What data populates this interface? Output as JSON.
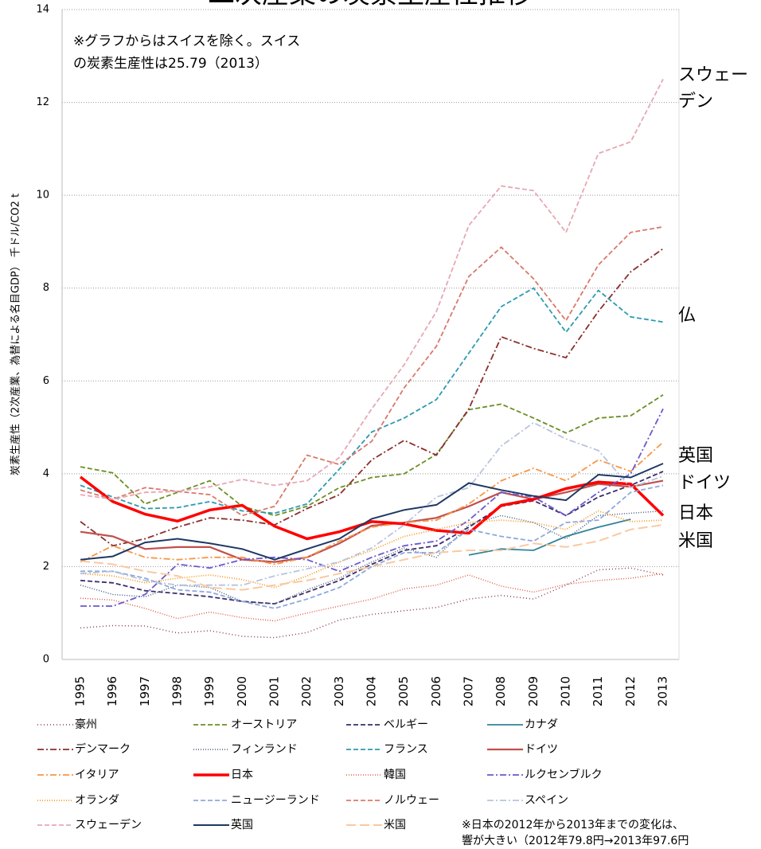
{
  "chart_data": {
    "type": "line",
    "title": "二次産業の炭素生産性推移",
    "y_label": "炭素生産性（2次産業、為替による名目GDP） 千ドル/CO2 t",
    "annotation": [
      "※グラフからはスイスを除く。スイス",
      "の炭素生産性は25.79（2013）"
    ],
    "footnote": [
      "※日本の2012年から2013年までの変化は、",
      "響が大きい（2012年79.8円→2013年97.6円"
    ],
    "series_labels": [
      "スウェー",
      "デン",
      "仏",
      "英国",
      "ドイツ",
      "日本",
      "米国"
    ],
    "categories": [
      "1995",
      "1996",
      "1997",
      "1998",
      "1999",
      "2000",
      "2001",
      "2002",
      "2003",
      "2004",
      "2005",
      "2006",
      "2007",
      "2008",
      "2009",
      "2010",
      "2011",
      "2012",
      "2013"
    ],
    "ylim": [
      0,
      14
    ],
    "yticks": [
      0,
      2,
      4,
      6,
      8,
      10,
      12,
      14
    ],
    "grid": true,
    "series": [
      {
        "name": "豪州",
        "color": "#8b3a62",
        "dash": "1,3",
        "width": 1.5,
        "values": [
          0.68,
          0.73,
          0.72,
          0.57,
          0.62,
          0.5,
          0.47,
          0.58,
          0.85,
          0.97,
          1.05,
          1.12,
          1.3,
          1.38,
          1.3,
          1.6,
          1.93,
          1.97,
          1.82
        ]
      },
      {
        "name": "オーストリア",
        "color": "#6b8e23",
        "dash": "6,3",
        "width": 1.8,
        "values": [
          4.15,
          4.02,
          3.35,
          3.6,
          3.85,
          3.3,
          3.1,
          3.3,
          3.7,
          3.92,
          4.0,
          4.42,
          5.38,
          5.5,
          5.2,
          4.88,
          5.2,
          5.25,
          5.7
        ]
      },
      {
        "name": "ベルギー",
        "color": "#3b2d6b",
        "dash": "6,3",
        "width": 1.8,
        "values": [
          1.7,
          1.65,
          1.48,
          1.42,
          1.35,
          1.25,
          1.2,
          1.45,
          1.7,
          2.05,
          2.35,
          2.45,
          2.85,
          3.3,
          3.42,
          3.1,
          3.5,
          3.75,
          4.05
        ]
      },
      {
        "name": "カナダ",
        "color": "#31849b",
        "dash": "",
        "width": 1.8,
        "values": [
          null,
          null,
          null,
          null,
          null,
          null,
          null,
          null,
          null,
          null,
          null,
          null,
          2.25,
          2.38,
          2.35,
          2.65,
          2.85,
          3.02,
          null
        ]
      },
      {
        "name": "デンマーク",
        "color": "#8b2e2e",
        "dash": "8,3,2,3",
        "width": 1.8,
        "values": [
          2.97,
          2.45,
          2.6,
          2.85,
          3.05,
          3.0,
          2.9,
          3.25,
          3.55,
          4.3,
          4.72,
          4.4,
          5.4,
          6.95,
          6.7,
          6.5,
          7.5,
          8.35,
          8.85
        ]
      },
      {
        "name": "フィンランド",
        "color": "#4a5a7a",
        "dash": "1,2",
        "width": 1.5,
        "values": [
          1.6,
          1.4,
          1.35,
          1.6,
          1.55,
          1.25,
          1.2,
          1.5,
          1.75,
          2.1,
          2.4,
          2.2,
          2.9,
          3.1,
          2.95,
          2.6,
          3.1,
          3.15,
          3.2
        ]
      },
      {
        "name": "フランス",
        "color": "#2e9ab0",
        "dash": "6,3",
        "width": 1.8,
        "values": [
          3.75,
          3.5,
          3.25,
          3.27,
          3.4,
          3.2,
          3.15,
          3.35,
          4.1,
          4.9,
          5.2,
          5.6,
          6.6,
          7.6,
          8.0,
          7.05,
          7.95,
          7.38,
          7.27
        ]
      },
      {
        "name": "ドイツ",
        "color": "#c0504d",
        "dash": "",
        "width": 2.2,
        "values": [
          2.75,
          2.65,
          2.38,
          2.42,
          2.42,
          2.15,
          2.1,
          2.2,
          2.5,
          2.88,
          2.95,
          3.05,
          3.3,
          3.6,
          3.45,
          3.6,
          3.78,
          3.72,
          3.85
        ]
      },
      {
        "name": "イタリア",
        "color": "#f79646",
        "dash": "8,3,2,3",
        "width": 1.8,
        "values": [
          2.1,
          2.45,
          2.2,
          2.15,
          2.2,
          2.2,
          2.05,
          2.2,
          2.55,
          2.85,
          2.95,
          3.0,
          3.35,
          3.85,
          4.12,
          3.85,
          4.3,
          4.05,
          4.68
        ]
      },
      {
        "name": "日本",
        "color": "#ff0000",
        "dash": "",
        "width": 3.5,
        "values": [
          3.93,
          3.4,
          3.13,
          2.98,
          3.22,
          3.32,
          2.87,
          2.6,
          2.75,
          2.97,
          2.92,
          2.78,
          2.72,
          3.32,
          3.45,
          3.68,
          3.82,
          3.78,
          3.1
        ]
      },
      {
        "name": "韓国",
        "color": "#e0604a",
        "dash": "1,2",
        "width": 1.5,
        "values": [
          1.32,
          1.28,
          1.1,
          0.88,
          1.02,
          0.9,
          0.83,
          1.0,
          1.15,
          1.3,
          1.52,
          1.6,
          1.82,
          1.58,
          1.45,
          1.62,
          1.7,
          1.75,
          1.85
        ]
      },
      {
        "name": "ルクセンブルク",
        "color": "#6a5acd",
        "dash": "8,3,2,3",
        "width": 1.8,
        "values": [
          1.15,
          1.15,
          1.4,
          2.05,
          1.97,
          2.15,
          2.2,
          2.15,
          1.9,
          2.2,
          2.45,
          2.55,
          3.0,
          3.6,
          3.5,
          3.1,
          3.6,
          4.0,
          5.4
        ]
      },
      {
        "name": "オランダ",
        "color": "#f59a23",
        "dash": "1,2",
        "width": 1.8,
        "values": [
          1.85,
          1.8,
          1.65,
          1.75,
          1.82,
          1.72,
          1.55,
          1.8,
          2.1,
          2.35,
          2.65,
          2.8,
          2.95,
          3.0,
          2.95,
          2.8,
          3.2,
          2.97,
          3.0
        ]
      },
      {
        "name": "ニュージーランド",
        "color": "#8ea9db",
        "dash": "6,3",
        "width": 1.8,
        "values": [
          1.9,
          1.9,
          1.75,
          1.5,
          1.45,
          1.25,
          1.1,
          1.3,
          1.55,
          2.0,
          2.3,
          2.3,
          2.8,
          2.65,
          2.55,
          2.95,
          3.0,
          3.6,
          3.75
        ]
      },
      {
        "name": "ノルウェー",
        "color": "#d9796a",
        "dash": "6,3",
        "width": 1.8,
        "values": [
          3.65,
          3.45,
          3.7,
          3.62,
          3.55,
          3.1,
          3.3,
          4.4,
          4.2,
          4.7,
          5.85,
          6.75,
          8.25,
          8.88,
          8.2,
          7.3,
          8.5,
          9.2,
          9.32
        ]
      },
      {
        "name": "スペイン",
        "color": "#b8c4dc",
        "dash": "8,3,2,3",
        "width": 1.8,
        "values": [
          1.85,
          1.9,
          1.7,
          1.6,
          1.6,
          1.6,
          1.8,
          1.95,
          2.1,
          2.4,
          2.9,
          3.5,
          3.7,
          4.6,
          5.1,
          4.75,
          4.5,
          3.7,
          3.95
        ]
      },
      {
        "name": "スウェーデン",
        "color": "#e6a8b4",
        "dash": "6,3",
        "width": 1.8,
        "values": [
          3.55,
          3.45,
          3.6,
          3.62,
          3.72,
          3.88,
          3.75,
          3.85,
          4.35,
          5.4,
          6.35,
          7.5,
          9.35,
          10.2,
          10.1,
          9.2,
          10.9,
          11.15,
          12.5
        ]
      },
      {
        "name": "英国",
        "color": "#1f3864",
        "dash": "",
        "width": 2.0,
        "values": [
          2.15,
          2.22,
          2.52,
          2.6,
          2.5,
          2.38,
          2.15,
          2.38,
          2.6,
          3.03,
          3.22,
          3.33,
          3.8,
          3.65,
          3.52,
          3.43,
          3.98,
          3.92,
          4.22
        ]
      },
      {
        "name": "米国",
        "color": "#fac8a0",
        "dash": "12,5",
        "width": 2.0,
        "values": [
          2.12,
          2.05,
          1.9,
          1.8,
          1.55,
          1.5,
          1.6,
          1.7,
          1.85,
          2.0,
          2.15,
          2.3,
          2.35,
          2.35,
          2.5,
          2.42,
          2.55,
          2.8,
          2.9
        ]
      }
    ]
  }
}
